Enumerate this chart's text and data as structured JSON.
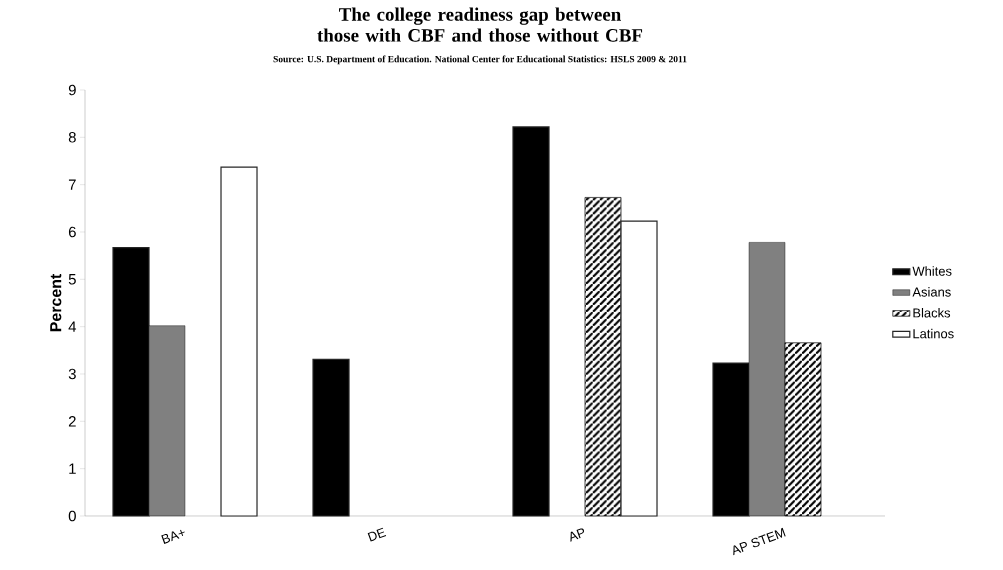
{
  "chart_data": {
    "type": "bar",
    "title": "The college readiness gap between those with CBF and those without CBF",
    "subtitle": "Source: U.S. Department of Education. National Center for Educational Statistics: HSLS 2009 & 2011",
    "ylabel": "Percent",
    "categories": [
      "BA+",
      "DE",
      "AP",
      "AP STEM"
    ],
    "series": [
      {
        "name": "Whites",
        "color": "#000000",
        "values": [
          5.67,
          3.31,
          8.22,
          3.23
        ]
      },
      {
        "name": "Asians",
        "color": "#808080",
        "values": [
          4.02,
          null,
          null,
          5.78
        ]
      },
      {
        "name": "Blacks",
        "color": "#000000",
        "values": [
          null,
          null,
          6.73,
          3.66
        ]
      },
      {
        "name": "Latinos",
        "color": "#ffffff",
        "values": [
          7.37,
          null,
          6.23,
          null
        ]
      }
    ],
    "ylim": [
      0,
      9
    ],
    "yticks": [
      0,
      1,
      2,
      3,
      4,
      5,
      6,
      7,
      8,
      9
    ],
    "grid": false,
    "legend": "right"
  }
}
